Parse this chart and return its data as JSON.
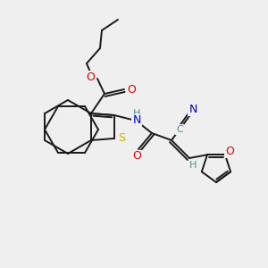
{
  "bg_color": "#efefef",
  "bond_color": "#1a1a1a",
  "atom_colors": {
    "S": "#c8b400",
    "O": "#dd0000",
    "N": "#0000cc",
    "C_label": "#4a9090",
    "H": "#4a9090"
  },
  "figsize": [
    3.0,
    3.0
  ],
  "dpi": 100,
  "lw": 1.4
}
